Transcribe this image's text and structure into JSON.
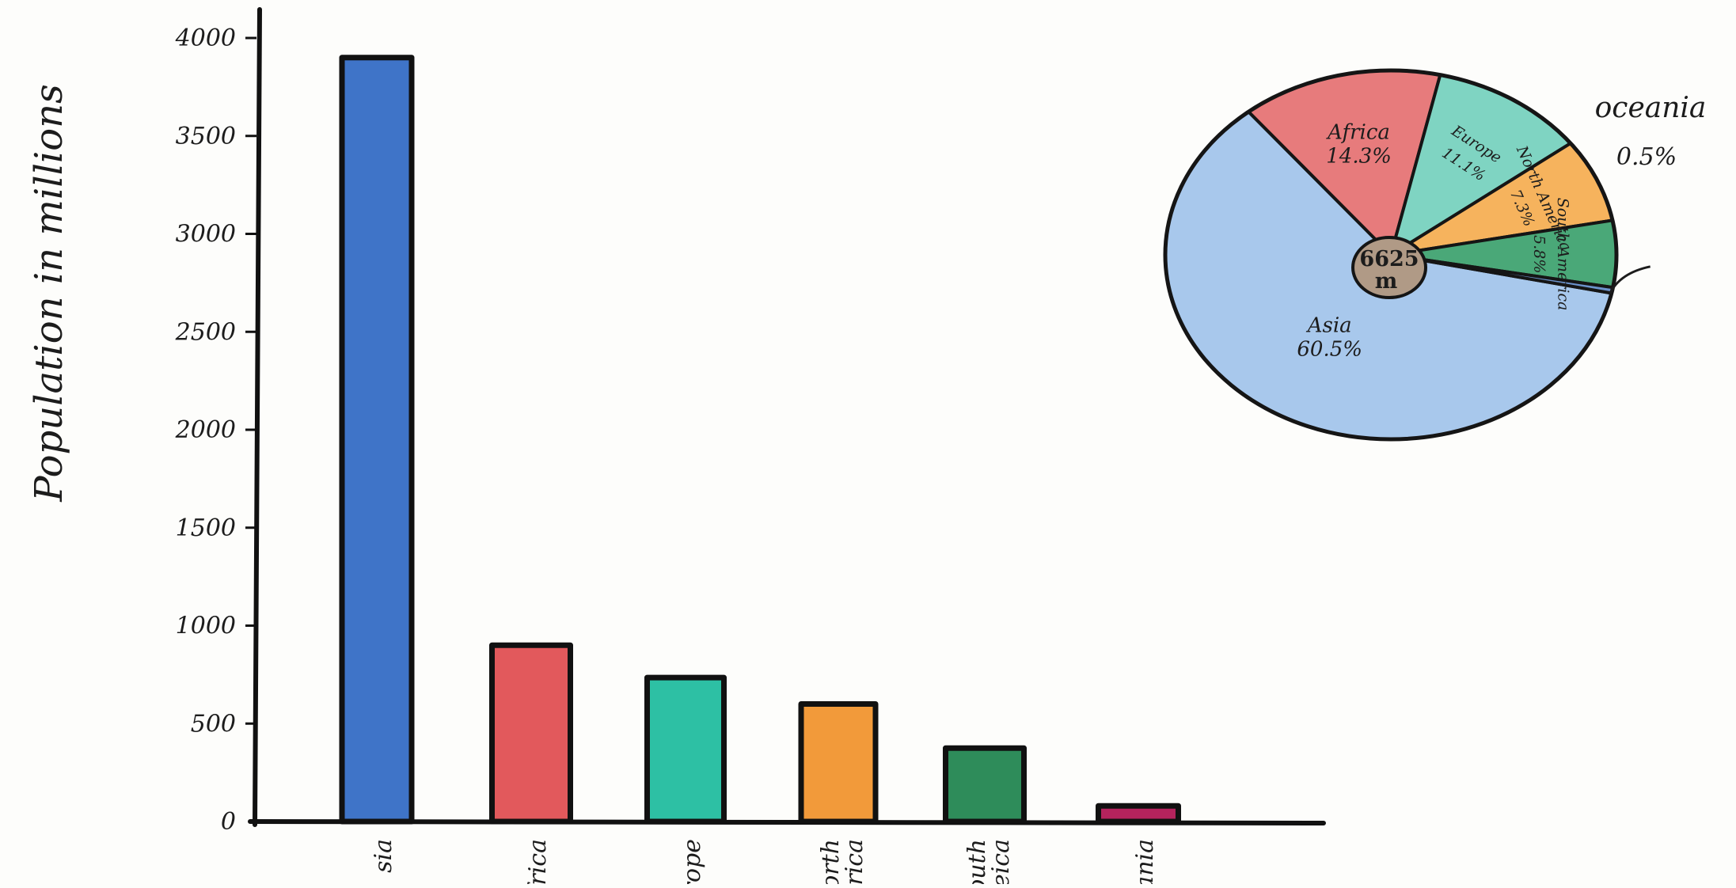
{
  "chart_data": [
    {
      "type": "bar",
      "ylabel": "Population in millions",
      "xlabel": "",
      "ylim": [
        0,
        4000
      ],
      "yticks": [
        0,
        500,
        1000,
        1500,
        2000,
        2500,
        3000,
        3500,
        4000
      ],
      "ytick_labels": [
        "0",
        "500",
        "1000",
        "1500",
        "2000",
        "2500",
        "3000",
        "3500",
        "4000"
      ],
      "categories": [
        "sia",
        "frica",
        "urope",
        "North merica",
        "outh Ameica",
        "ceania"
      ],
      "values": [
        3900,
        900,
        735,
        600,
        375,
        80
      ],
      "colors": [
        "#3f74c8",
        "#e2595c",
        "#2dc0a4",
        "#f29a3a",
        "#2e8c5a",
        "#b5235d"
      ],
      "grid": false
    },
    {
      "type": "pie",
      "center_label_lines": [
        "6625",
        "m"
      ],
      "slices": [
        {
          "label": "Asia",
          "pct_label": "60.5%",
          "value": 60.5,
          "color": "#a8c8ec"
        },
        {
          "label": "Africa",
          "pct_label": "14.3%",
          "value": 14.3,
          "color": "#e77b7c"
        },
        {
          "label": "Europe",
          "pct_label": "11.1%",
          "value": 11.1,
          "color": "#7fd4c2"
        },
        {
          "label": "North America",
          "pct_label": "7.3%",
          "value": 7.3,
          "color": "#f6b35d"
        },
        {
          "label": "South America",
          "pct_label": "5.8%",
          "value": 5.8,
          "color": "#4aa878"
        },
        {
          "label": "Oceania",
          "pct_label": "0.5%",
          "value": 0.5,
          "color": "#6c93cc"
        }
      ],
      "callout": {
        "label": "oceania",
        "pct_label": "0.5%"
      }
    }
  ]
}
